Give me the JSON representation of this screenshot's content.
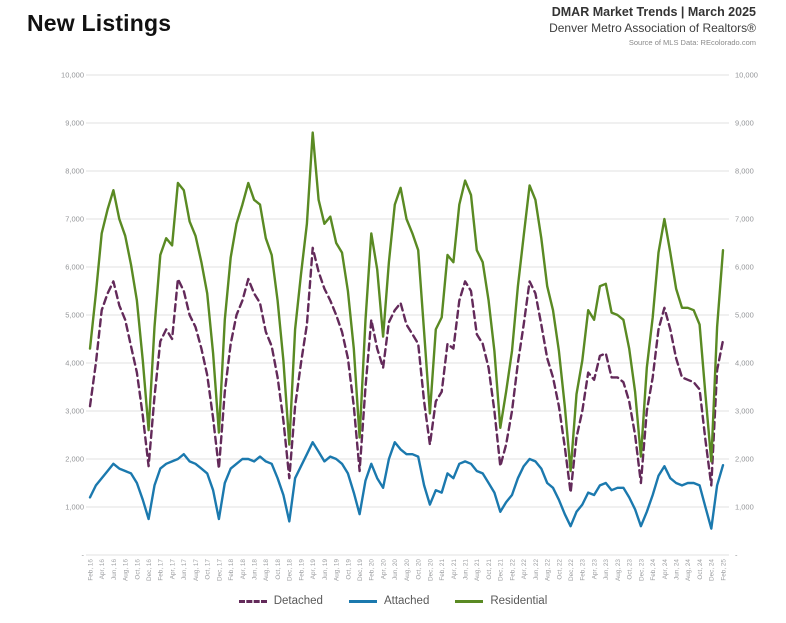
{
  "header": {
    "title": "New Listings",
    "report": "DMAR Market Trends | March 2025",
    "org": "Denver Metro Association of Realtors®",
    "source": "Source of MLS Data: REcolorado.com"
  },
  "chart_data": {
    "type": "line",
    "title": "New Listings",
    "x_frequency": "monthly",
    "x_range": [
      "Feb 2016",
      "Feb 2025"
    ],
    "x_tick_labels": [
      "Feb, 16",
      "Apr, 16",
      "Jun, 16",
      "Aug, 16",
      "Oct, 16",
      "Dec, 16",
      "Feb, 17",
      "Apr, 17",
      "Jun, 17",
      "Aug, 17",
      "Oct, 17",
      "Dec, 17",
      "Feb, 18",
      "Apr, 18",
      "Jun, 18",
      "Aug, 18",
      "Oct, 18",
      "Dec, 18",
      "Feb, 19",
      "Apr, 19",
      "Jun, 19",
      "Aug, 19",
      "Oct, 19",
      "Dec, 19",
      "Feb, 20",
      "Apr, 20",
      "Jun, 20",
      "Aug, 20",
      "Oct, 20",
      "Dec, 20",
      "Feb, 21",
      "Apr, 21",
      "Jun, 21",
      "Aug, 21",
      "Oct, 21",
      "Dec, 21",
      "Feb, 22",
      "Apr, 22",
      "Jun, 22",
      "Aug, 22",
      "Oct, 22",
      "Dec, 22",
      "Feb, 23",
      "Apr, 23",
      "Jun, 23",
      "Aug, 23",
      "Oct, 23",
      "Dec, 23",
      "Feb, 24",
      "Apr, 24",
      "Jun, 24",
      "Aug, 24",
      "Oct, 24",
      "Dec, 24",
      "Feb, 25"
    ],
    "ylim": [
      0,
      10000
    ],
    "y_tick_interval": 1000,
    "y_tick_labels": [
      "-",
      "1,000",
      "2,000",
      "3,000",
      "4,000",
      "5,000",
      "6,000",
      "7,000",
      "8,000",
      "9,000",
      "10,000"
    ],
    "grid": "horizontal",
    "legend_position": "bottom",
    "series": [
      {
        "name": "Detached",
        "color": "#632a5a",
        "style": "dashed",
        "values": [
          3100,
          4000,
          5100,
          5450,
          5700,
          5200,
          4900,
          4350,
          3800,
          2900,
          1850,
          3300,
          4450,
          4700,
          4500,
          5750,
          5500,
          5000,
          4750,
          4300,
          3750,
          2850,
          1800,
          3400,
          4400,
          5000,
          5300,
          5750,
          5450,
          5250,
          4650,
          4350,
          3700,
          2800,
          1600,
          3100,
          4000,
          4800,
          6400,
          5900,
          5550,
          5300,
          5000,
          4650,
          4100,
          3100,
          1750,
          3500,
          4900,
          4300,
          3900,
          4850,
          5100,
          5250,
          4800,
          4600,
          4400,
          3200,
          2300,
          3200,
          3400,
          4400,
          4300,
          5300,
          5700,
          5500,
          4600,
          4400,
          3900,
          3000,
          1850,
          2300,
          3000,
          4000,
          4800,
          5700,
          5450,
          4800,
          4100,
          3700,
          3100,
          2250,
          1300,
          2450,
          3000,
          3800,
          3650,
          4150,
          4200,
          3700,
          3700,
          3600,
          3200,
          2500,
          1500,
          3000,
          3700,
          4700,
          5150,
          4700,
          4100,
          3700,
          3650,
          3600,
          3450,
          2400,
          1450,
          3850,
          4470
        ]
      },
      {
        "name": "Attached",
        "color": "#1b79ae",
        "style": "solid",
        "values": [
          1200,
          1450,
          1600,
          1750,
          1900,
          1800,
          1750,
          1700,
          1500,
          1150,
          750,
          1450,
          1800,
          1900,
          1950,
          2000,
          2100,
          1950,
          1900,
          1800,
          1700,
          1350,
          750,
          1500,
          1800,
          1900,
          2000,
          2000,
          1950,
          2050,
          1950,
          1900,
          1600,
          1250,
          700,
          1600,
          1850,
          2100,
          2350,
          2150,
          1950,
          2050,
          2000,
          1900,
          1700,
          1300,
          850,
          1550,
          1900,
          1600,
          1400,
          2000,
          2350,
          2200,
          2100,
          2100,
          2050,
          1450,
          1050,
          1350,
          1300,
          1700,
          1600,
          1900,
          1950,
          1900,
          1750,
          1700,
          1500,
          1300,
          900,
          1100,
          1250,
          1600,
          1850,
          2000,
          1950,
          1800,
          1500,
          1400,
          1150,
          850,
          600,
          900,
          1050,
          1300,
          1250,
          1450,
          1500,
          1350,
          1400,
          1400,
          1200,
          950,
          600,
          900,
          1250,
          1650,
          1850,
          1600,
          1500,
          1450,
          1500,
          1500,
          1450,
          1000,
          550,
          1450,
          1870
        ]
      },
      {
        "name": "Residential",
        "color": "#5a8a23",
        "style": "solid",
        "values": [
          4300,
          5450,
          6700,
          7200,
          7600,
          7000,
          6650,
          6050,
          5300,
          4050,
          2600,
          4750,
          6250,
          6600,
          6450,
          7750,
          7600,
          6950,
          6650,
          6100,
          5450,
          4200,
          2550,
          4900,
          6200,
          6900,
          7300,
          7750,
          7400,
          7300,
          6600,
          6250,
          5300,
          4050,
          2300,
          4700,
          5850,
          6900,
          8800,
          7400,
          6900,
          7050,
          6500,
          6300,
          5500,
          4300,
          2450,
          4900,
          6700,
          5950,
          4550,
          6100,
          7300,
          7650,
          7000,
          6700,
          6350,
          4650,
          2950,
          4700,
          4950,
          6250,
          6100,
          7300,
          7800,
          7500,
          6350,
          6100,
          5300,
          4250,
          2650,
          3400,
          4250,
          5600,
          6650,
          7700,
          7400,
          6600,
          5600,
          5100,
          4250,
          3100,
          1750,
          3350,
          4050,
          5100,
          4900,
          5600,
          5650,
          5050,
          5000,
          4900,
          4300,
          3400,
          2050,
          3900,
          4950,
          6300,
          7000,
          6300,
          5550,
          5150,
          5150,
          5100,
          4800,
          3350,
          1950,
          4750,
          6350
        ]
      }
    ]
  }
}
